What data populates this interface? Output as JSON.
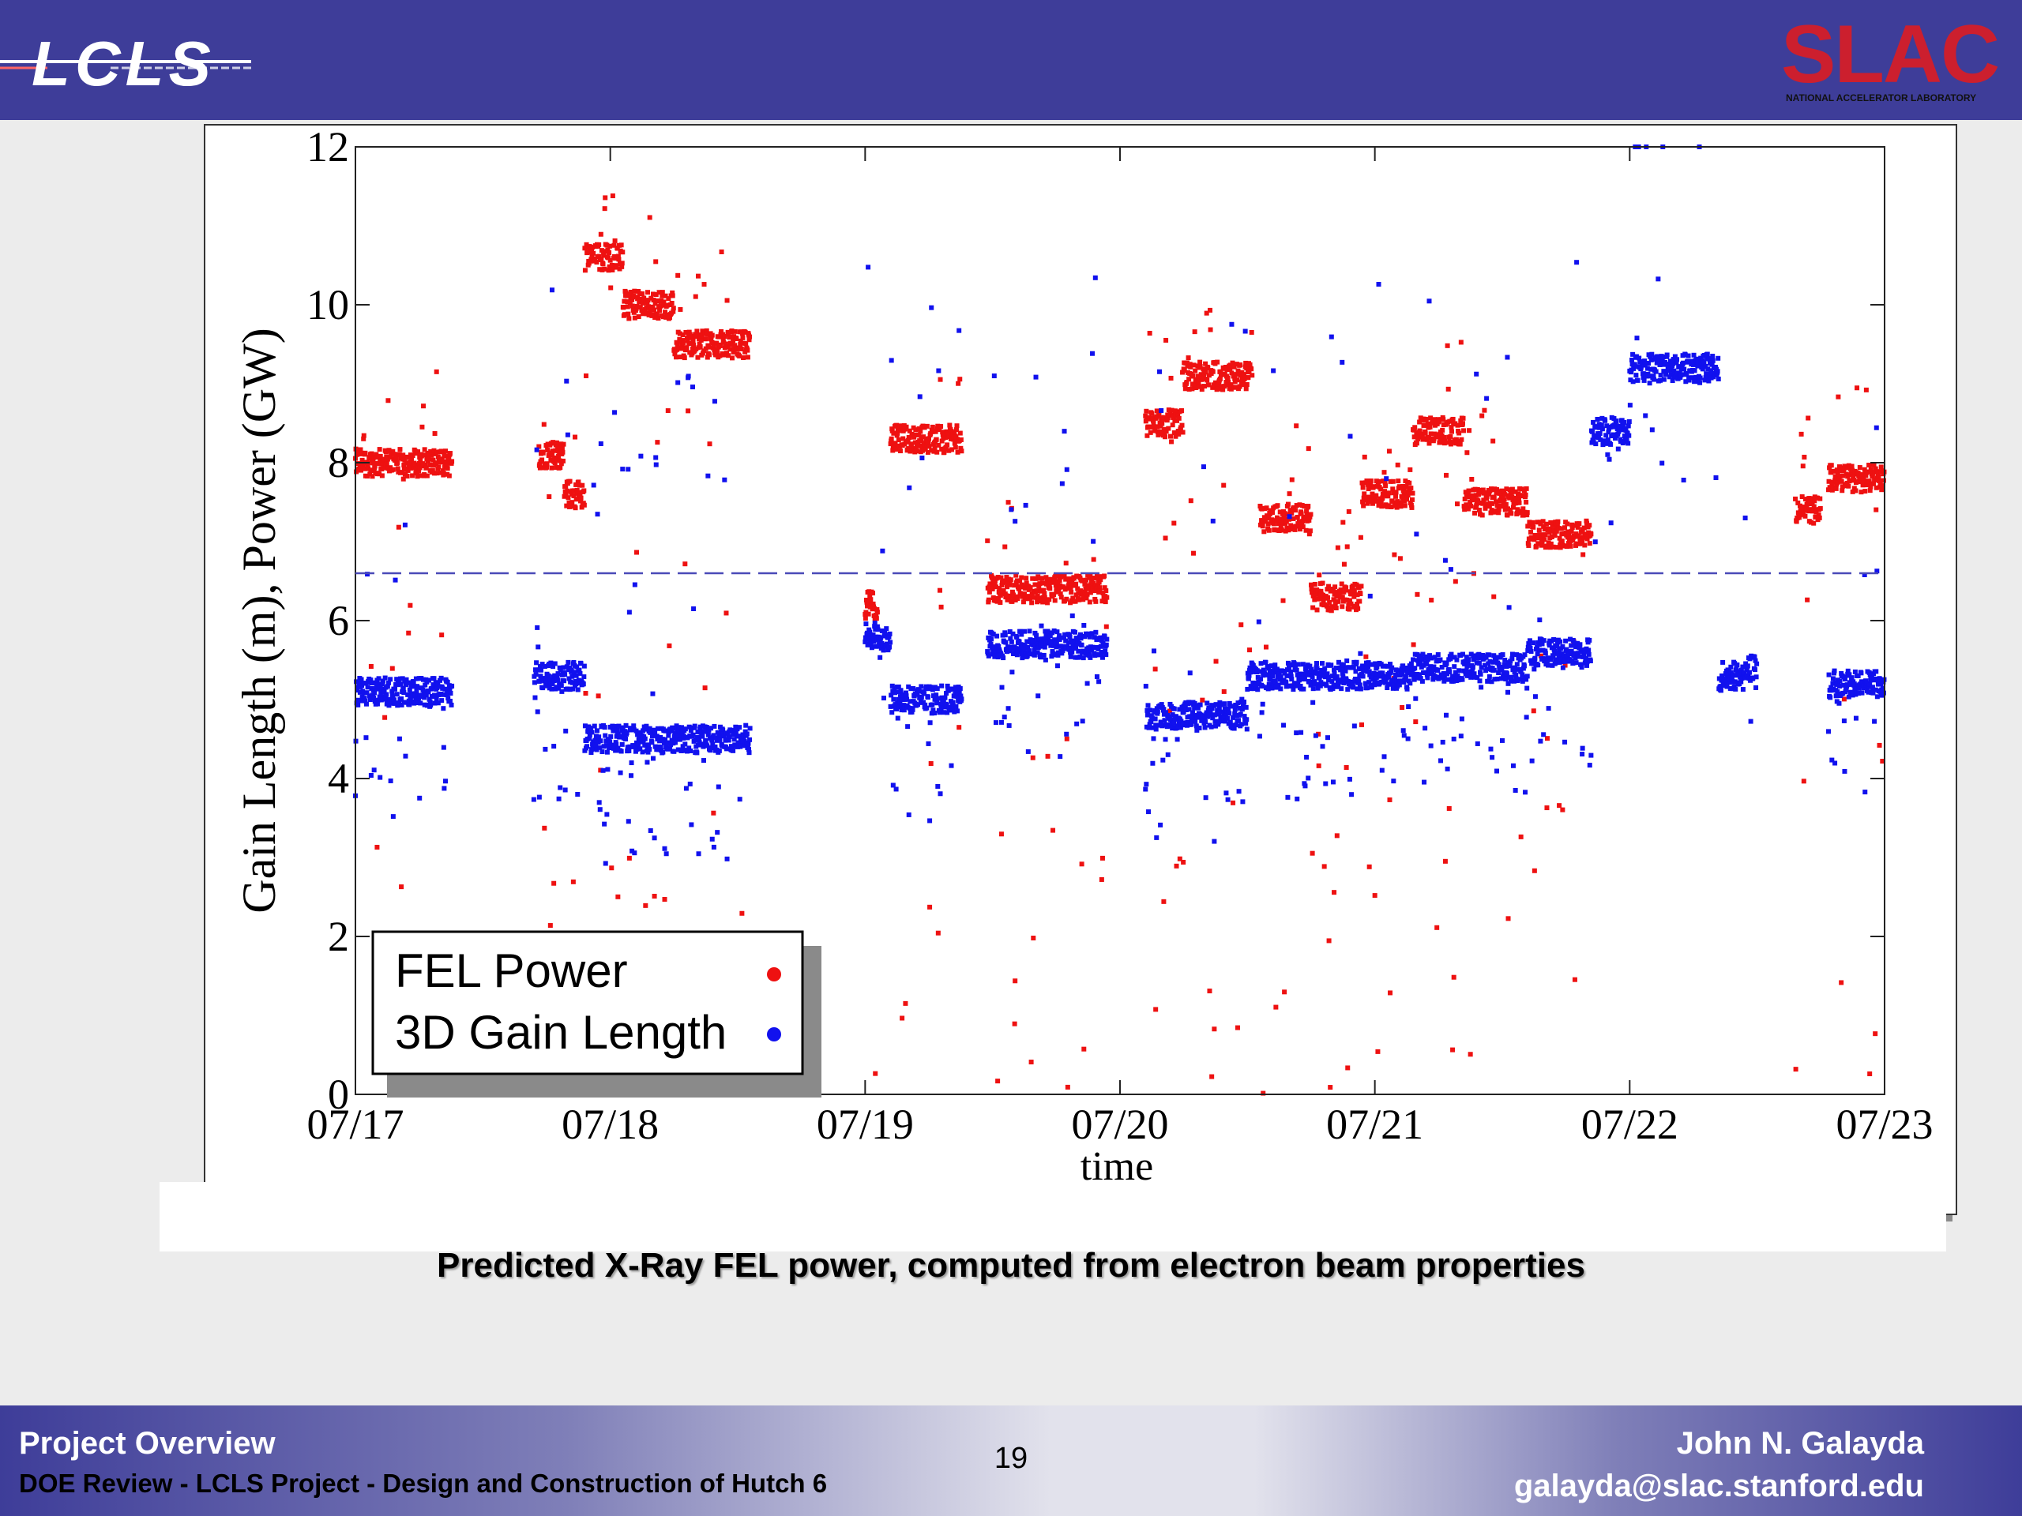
{
  "header": {
    "left_logo": "LCLS",
    "right_logo": "SLAC",
    "right_logo_sub": "NATIONAL ACCELERATOR LABORATORY"
  },
  "chart_data": {
    "type": "scatter",
    "xlabel": "time",
    "ylabel": "Gain Length (m), Power (GW)",
    "x_ticks": [
      "07/17",
      "07/18",
      "07/19",
      "07/20",
      "07/21",
      "07/22",
      "07/23"
    ],
    "y_ticks": [
      0,
      2,
      4,
      6,
      8,
      10,
      12
    ],
    "xlim": [
      "07/17",
      "07/23"
    ],
    "ylim": [
      0,
      12
    ],
    "reference_line_y": 6.6,
    "legend_position": "bottom-left",
    "series": [
      {
        "name": "FEL Power",
        "color": "#ee1111",
        "segments": [
          {
            "x": [
              0.0,
              0.38
            ],
            "y": 8.0
          },
          {
            "x": [
              0.72,
              0.82
            ],
            "y": 8.1
          },
          {
            "x": [
              0.82,
              0.9
            ],
            "y": 7.6
          },
          {
            "x": [
              0.9,
              1.05
            ],
            "y": 10.6
          },
          {
            "x": [
              1.05,
              1.25
            ],
            "y": 10.0
          },
          {
            "x": [
              1.25,
              1.55
            ],
            "y": 9.5
          },
          {
            "x": [
              2.0,
              2.05
            ],
            "y": 6.2
          },
          {
            "x": [
              2.1,
              2.38
            ],
            "y": 8.3
          },
          {
            "x": [
              2.48,
              2.95
            ],
            "y": 6.4
          },
          {
            "x": [
              3.1,
              3.25
            ],
            "y": 8.5
          },
          {
            "x": [
              3.25,
              3.52
            ],
            "y": 9.1
          },
          {
            "x": [
              3.55,
              3.75
            ],
            "y": 7.3
          },
          {
            "x": [
              3.75,
              3.95
            ],
            "y": 6.3
          },
          {
            "x": [
              3.95,
              4.15
            ],
            "y": 7.6
          },
          {
            "x": [
              4.15,
              4.35
            ],
            "y": 8.4
          },
          {
            "x": [
              4.35,
              4.6
            ],
            "y": 7.5
          },
          {
            "x": [
              4.6,
              4.85
            ],
            "y": 7.1
          },
          {
            "x": [
              5.65,
              5.75
            ],
            "y": 7.4
          },
          {
            "x": [
              5.78,
              6.0
            ],
            "y": 7.8
          }
        ]
      },
      {
        "name": "3D Gain Length",
        "color": "#1111ee",
        "segments": [
          {
            "x": [
              0.0,
              0.38
            ],
            "y": 5.1
          },
          {
            "x": [
              0.7,
              0.9
            ],
            "y": 5.3
          },
          {
            "x": [
              0.9,
              1.55
            ],
            "y": 4.5
          },
          {
            "x": [
              2.0,
              2.1
            ],
            "y": 5.8
          },
          {
            "x": [
              2.1,
              2.38
            ],
            "y": 5.0
          },
          {
            "x": [
              2.48,
              2.95
            ],
            "y": 5.7
          },
          {
            "x": [
              3.1,
              3.5
            ],
            "y": 4.8
          },
          {
            "x": [
              3.5,
              3.7
            ],
            "y": 5.3
          },
          {
            "x": [
              3.7,
              4.15
            ],
            "y": 5.3
          },
          {
            "x": [
              4.15,
              4.6
            ],
            "y": 5.4
          },
          {
            "x": [
              4.6,
              4.85
            ],
            "y": 5.6
          },
          {
            "x": [
              4.85,
              5.0
            ],
            "y": 8.4
          },
          {
            "x": [
              5.0,
              5.35
            ],
            "y": 9.2
          },
          {
            "x": [
              5.35,
              5.45
            ],
            "y": 5.3
          },
          {
            "x": [
              5.45,
              5.5
            ],
            "y": 5.4
          },
          {
            "x": [
              5.78,
              6.0
            ],
            "y": 5.2
          }
        ]
      }
    ]
  },
  "caption": "Predicted X-Ray FEL power, computed from electron beam properties",
  "footer": {
    "title": "Project Overview",
    "subtitle": "DOE Review - LCLS Project - Design and Construction of Hutch 6",
    "page_number": "19",
    "author": "John N. Galayda",
    "email": "galayda@slac.stanford.edu"
  }
}
